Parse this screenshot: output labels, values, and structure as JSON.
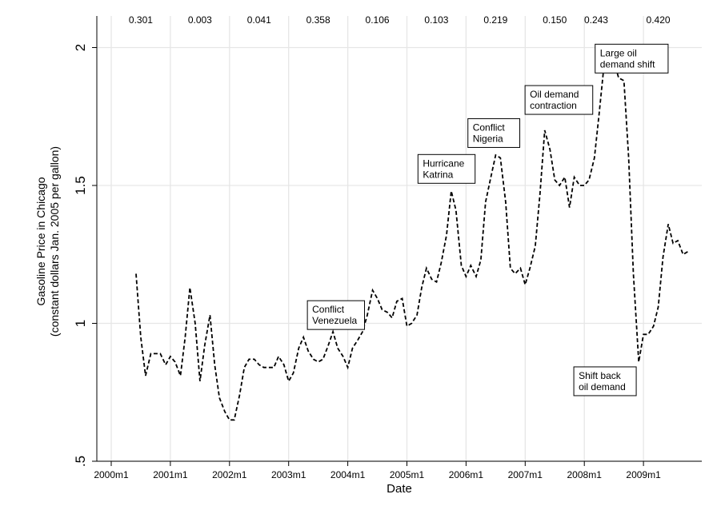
{
  "chart_data": {
    "type": "line",
    "title": "",
    "xlabel": "Date",
    "ylabel": "Gasoline Price in Chicago",
    "ylabel_line2": "(constant dollars Jan. 2005 per gallon)",
    "xlim": [
      2000.0,
      2009.83
    ],
    "ylim": [
      0.5,
      2.0
    ],
    "grid": true,
    "x_ticks": [
      {
        "value": 2000.0,
        "label": "2000m1"
      },
      {
        "value": 2001.0,
        "label": "2001m1"
      },
      {
        "value": 2002.0,
        "label": "2002m1"
      },
      {
        "value": 2003.0,
        "label": "2003m1"
      },
      {
        "value": 2004.0,
        "label": "2004m1"
      },
      {
        "value": 2005.0,
        "label": "2005m1"
      },
      {
        "value": 2006.0,
        "label": "2006m1"
      },
      {
        "value": 2007.0,
        "label": "2007m1"
      },
      {
        "value": 2008.0,
        "label": "2008m1"
      },
      {
        "value": 2009.0,
        "label": "2009m1"
      }
    ],
    "y_ticks": [
      {
        "value": 0.5,
        "label": ".5"
      },
      {
        "value": 1.0,
        "label": "1"
      },
      {
        "value": 1.5,
        "label": "1.5"
      },
      {
        "value": 2.0,
        "label": "2"
      }
    ],
    "top_values": [
      {
        "x": 2000.5,
        "label": "0.301"
      },
      {
        "x": 2001.5,
        "label": "0.003"
      },
      {
        "x": 2002.5,
        "label": "0.041"
      },
      {
        "x": 2003.5,
        "label": "0.358"
      },
      {
        "x": 2004.5,
        "label": "0.106"
      },
      {
        "x": 2005.5,
        "label": "0.103"
      },
      {
        "x": 2006.5,
        "label": "0.219"
      },
      {
        "x": 2007.5,
        "label": "0.150"
      },
      {
        "x": 2008.2,
        "label": "0.243"
      },
      {
        "x": 2009.25,
        "label": "0.420"
      }
    ],
    "annotations": [
      {
        "lines": [
          "Conflict",
          "Venezuela"
        ],
        "x": 2003.8,
        "y": 1.03
      },
      {
        "lines": [
          "Hurricane",
          "Katrina"
        ],
        "x": 2005.67,
        "y": 1.56
      },
      {
        "lines": [
          "Conflict",
          "Nigeria"
        ],
        "x": 2006.47,
        "y": 1.69
      },
      {
        "lines": [
          "Oil demand",
          "contraction"
        ],
        "x": 2007.57,
        "y": 1.81
      },
      {
        "lines": [
          "Large oil",
          "demand shift"
        ],
        "x": 2008.8,
        "y": 1.96
      },
      {
        "lines": [
          "Shift back",
          "oil demand"
        ],
        "x": 2008.35,
        "y": 0.79
      }
    ],
    "series": [
      {
        "x": [
          2000.42,
          2000.5,
          2000.58,
          2000.67,
          2000.75,
          2000.83,
          2000.92,
          2001.0,
          2001.08,
          2001.17,
          2001.25,
          2001.33,
          2001.42,
          2001.5,
          2001.58,
          2001.67,
          2001.75,
          2001.83,
          2001.92,
          2002.0,
          2002.08,
          2002.17,
          2002.25,
          2002.33,
          2002.42,
          2002.5,
          2002.58,
          2002.67,
          2002.75,
          2002.83,
          2002.92,
          2003.0,
          2003.08,
          2003.17,
          2003.25,
          2003.33,
          2003.42,
          2003.5,
          2003.58,
          2003.67,
          2003.75,
          2003.83,
          2003.92,
          2004.0,
          2004.08,
          2004.17,
          2004.25,
          2004.33,
          2004.42,
          2004.5,
          2004.58,
          2004.67,
          2004.75,
          2004.83,
          2004.92,
          2005.0,
          2005.08,
          2005.17,
          2005.25,
          2005.33,
          2005.42,
          2005.5,
          2005.58,
          2005.67,
          2005.75,
          2005.83,
          2005.92,
          2006.0,
          2006.08,
          2006.17,
          2006.25,
          2006.33,
          2006.42,
          2006.5,
          2006.58,
          2006.67,
          2006.75,
          2006.83,
          2006.92,
          2007.0,
          2007.08,
          2007.17,
          2007.25,
          2007.33,
          2007.42,
          2007.5,
          2007.58,
          2007.67,
          2007.75,
          2007.83,
          2007.92,
          2008.0,
          2008.08,
          2008.17,
          2008.25,
          2008.33,
          2008.42,
          2008.5,
          2008.58,
          2008.67,
          2008.75,
          2008.83,
          2008.92,
          2009.0,
          2009.08,
          2009.17,
          2009.25,
          2009.33,
          2009.42,
          2009.5,
          2009.58,
          2009.67,
          2009.75
        ],
        "y": [
          1.18,
          0.95,
          0.81,
          0.89,
          0.89,
          0.89,
          0.85,
          0.88,
          0.86,
          0.81,
          0.95,
          1.13,
          1.0,
          0.79,
          0.92,
          1.03,
          0.85,
          0.73,
          0.68,
          0.65,
          0.65,
          0.74,
          0.84,
          0.87,
          0.87,
          0.85,
          0.84,
          0.84,
          0.84,
          0.88,
          0.85,
          0.79,
          0.82,
          0.91,
          0.95,
          0.9,
          0.87,
          0.86,
          0.87,
          0.92,
          0.97,
          0.91,
          0.88,
          0.84,
          0.91,
          0.94,
          0.97,
          1.03,
          1.12,
          1.09,
          1.05,
          1.04,
          1.02,
          1.08,
          1.09,
          0.99,
          1.0,
          1.03,
          1.13,
          1.2,
          1.16,
          1.15,
          1.22,
          1.32,
          1.48,
          1.41,
          1.21,
          1.17,
          1.21,
          1.17,
          1.23,
          1.44,
          1.53,
          1.61,
          1.6,
          1.44,
          1.2,
          1.18,
          1.2,
          1.14,
          1.2,
          1.28,
          1.47,
          1.7,
          1.63,
          1.52,
          1.5,
          1.53,
          1.42,
          1.53,
          1.5,
          1.5,
          1.52,
          1.6,
          1.76,
          1.93,
          1.96,
          1.95,
          1.89,
          1.88,
          1.6,
          1.18,
          0.86,
          0.96,
          0.96,
          0.99,
          1.06,
          1.24,
          1.36,
          1.29,
          1.3,
          1.25,
          1.26
        ]
      }
    ]
  }
}
